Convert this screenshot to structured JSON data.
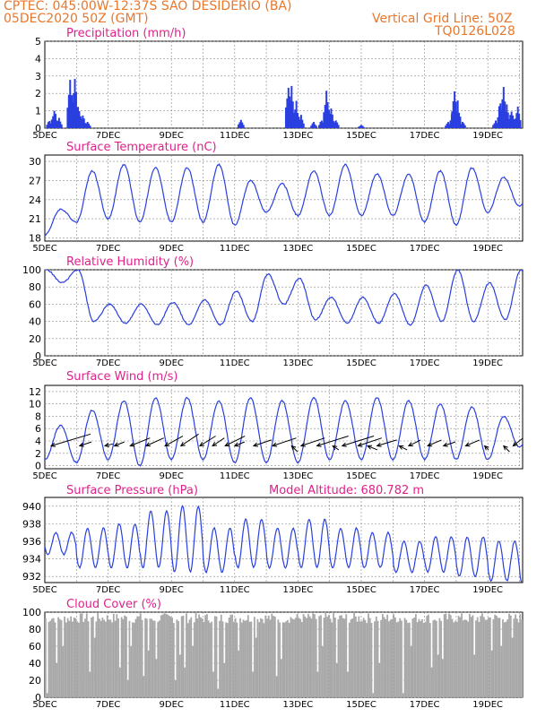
{
  "header": {
    "line1": "CPTEC:   045:00W-12:37S   SAO DESIDERIO (BA)",
    "line2": "05DEC2020 50Z (GMT)",
    "grid_note": "Vertical Grid Line: 50Z",
    "code": "TQ0126L028"
  },
  "colors": {
    "series": "#2a3fe0",
    "header": "#e8772e",
    "title": "#e0218a",
    "cloud": "#a8a8a8",
    "grid": "#888888"
  },
  "x_axis": {
    "ticks": [
      "5DEC",
      "7DEC",
      "9DEC",
      "11DEC",
      "13DEC",
      "15DEC",
      "17DEC",
      "19DEC"
    ],
    "tick_days": [
      0,
      2,
      4,
      6,
      8,
      10,
      12,
      14
    ],
    "range_days": [
      0,
      15.1
    ]
  },
  "chart_data": [
    {
      "type": "bar",
      "title": "Precipitation (mm/h)",
      "ylim": [
        0,
        5
      ],
      "yticks": [
        0,
        1,
        2,
        3,
        4,
        5
      ],
      "grid": true,
      "peaks": [
        {
          "day": 0.15,
          "value": 0.5
        },
        {
          "day": 0.3,
          "value": 1.2
        },
        {
          "day": 0.45,
          "value": 0.6
        },
        {
          "day": 0.8,
          "value": 3.1
        },
        {
          "day": 0.85,
          "value": 2.5
        },
        {
          "day": 0.95,
          "value": 3.1
        },
        {
          "day": 1.05,
          "value": 1.6
        },
        {
          "day": 1.2,
          "value": 0.8
        },
        {
          "day": 1.35,
          "value": 0.4
        },
        {
          "day": 6.2,
          "value": 0.5
        },
        {
          "day": 7.7,
          "value": 2.9
        },
        {
          "day": 7.8,
          "value": 2.5
        },
        {
          "day": 7.95,
          "value": 1.6
        },
        {
          "day": 8.1,
          "value": 0.8
        },
        {
          "day": 8.5,
          "value": 0.4
        },
        {
          "day": 8.75,
          "value": 0.5
        },
        {
          "day": 8.9,
          "value": 2.4
        },
        {
          "day": 9.05,
          "value": 1.2
        },
        {
          "day": 9.2,
          "value": 0.5
        },
        {
          "day": 10.0,
          "value": 0.2
        },
        {
          "day": 12.75,
          "value": 0.4
        },
        {
          "day": 12.9,
          "value": 1.2
        },
        {
          "day": 12.95,
          "value": 2.2
        },
        {
          "day": 13.05,
          "value": 1.6
        },
        {
          "day": 13.2,
          "value": 0.4
        },
        {
          "day": 14.25,
          "value": 0.5
        },
        {
          "day": 14.4,
          "value": 1.8
        },
        {
          "day": 14.5,
          "value": 2.5
        },
        {
          "day": 14.6,
          "value": 1.5
        },
        {
          "day": 14.75,
          "value": 1.2
        },
        {
          "day": 14.95,
          "value": 1.3
        }
      ]
    },
    {
      "type": "line",
      "title": "Surface Temperature (nC)",
      "ylim": [
        17.5,
        31
      ],
      "yticks": [
        18,
        21,
        24,
        27,
        30
      ],
      "grid": true,
      "daily_max": [
        22.5,
        28.5,
        29.5,
        29.0,
        29.0,
        29.5,
        27.0,
        26.5,
        28.5,
        29.5,
        28.0,
        28.0,
        28.5,
        29.0,
        27.5,
        26.5
      ],
      "daily_min": [
        18.5,
        20.5,
        21.0,
        20.5,
        20.5,
        20.5,
        20.0,
        22.0,
        21.5,
        21.5,
        21.5,
        21.5,
        20.5,
        20.0,
        22.0,
        23.0
      ]
    },
    {
      "type": "line",
      "title": "Relative Humidity (%)",
      "ylim": [
        0,
        100
      ],
      "yticks": [
        0,
        20,
        40,
        60,
        80,
        100
      ],
      "grid": true,
      "daily_max": [
        100,
        100,
        60,
        60,
        62,
        65,
        75,
        95,
        90,
        68,
        68,
        72,
        82,
        100,
        85,
        100
      ],
      "daily_min": [
        85,
        40,
        38,
        36,
        36,
        36,
        40,
        60,
        42,
        38,
        38,
        36,
        40,
        40,
        42,
        48
      ]
    },
    {
      "type": "line",
      "title": "Surface Wind (m/s)",
      "ylim": [
        -0.5,
        13
      ],
      "yticks": [
        0,
        2,
        4,
        6,
        8,
        10,
        12
      ],
      "grid": true,
      "daily_max": [
        6.5,
        9.0,
        10.5,
        11.0,
        11.0,
        10.5,
        11.0,
        10.5,
        11.0,
        10.5,
        11.0,
        10.5,
        10.0,
        9.5,
        8.0,
        8.0
      ],
      "daily_min": [
        1.0,
        0.5,
        1.0,
        0.0,
        1.0,
        1.0,
        0.5,
        0.5,
        0.5,
        1.0,
        1.0,
        1.0,
        1.0,
        1.0,
        1.0,
        3.0
      ],
      "arrows": [
        {
          "day": 0.2,
          "u": 2.0,
          "v": 0.6
        },
        {
          "day": 1.1,
          "u": 0.6,
          "v": 0.2
        },
        {
          "day": 1.9,
          "u": 0.4,
          "v": 0.1
        },
        {
          "day": 2.2,
          "u": 0.5,
          "v": 0.2
        },
        {
          "day": 2.7,
          "u": 1.0,
          "v": 0.4
        },
        {
          "day": 3.2,
          "u": 0.9,
          "v": 0.4
        },
        {
          "day": 3.8,
          "u": 0.9,
          "v": 0.5
        },
        {
          "day": 4.3,
          "u": 0.9,
          "v": 0.6
        },
        {
          "day": 4.9,
          "u": 0.8,
          "v": 0.5
        },
        {
          "day": 5.3,
          "u": 0.6,
          "v": 0.4
        },
        {
          "day": 5.7,
          "u": 1.0,
          "v": 0.5
        },
        {
          "day": 6.0,
          "u": 0.5,
          "v": 0.2
        },
        {
          "day": 6.6,
          "u": 0.9,
          "v": 0.3
        },
        {
          "day": 7.2,
          "u": 1.2,
          "v": 0.4
        },
        {
          "day": 7.8,
          "u": 0.3,
          "v": -0.3
        },
        {
          "day": 8.1,
          "u": 1.2,
          "v": 0.4
        },
        {
          "day": 8.6,
          "u": 1.6,
          "v": 0.5
        },
        {
          "day": 9.1,
          "u": 0.3,
          "v": -0.2
        },
        {
          "day": 9.4,
          "u": 1.6,
          "v": 0.5
        },
        {
          "day": 9.9,
          "u": 1.2,
          "v": 0.4
        },
        {
          "day": 10.2,
          "u": 0.5,
          "v": -0.2
        },
        {
          "day": 10.5,
          "u": 1.0,
          "v": 0.3
        },
        {
          "day": 11.2,
          "u": 0.4,
          "v": -0.2
        },
        {
          "day": 11.5,
          "u": 0.6,
          "v": 0.3
        },
        {
          "day": 12.1,
          "u": 0.7,
          "v": 0.3
        },
        {
          "day": 12.6,
          "u": 0.6,
          "v": 0.2
        },
        {
          "day": 13.3,
          "u": 0.7,
          "v": 0.3
        },
        {
          "day": 13.9,
          "u": 0.2,
          "v": -0.2
        },
        {
          "day": 14.5,
          "u": 0.3,
          "v": -0.3
        },
        {
          "day": 14.8,
          "u": 0.5,
          "v": 0.4
        }
      ]
    },
    {
      "type": "line",
      "title": "Surface Pressure (hPa)",
      "subtitle": "Model Altitude: 680.782 m",
      "ylim": [
        931.3,
        941
      ],
      "yticks": [
        932,
        934,
        936,
        938,
        940
      ],
      "grid": true,
      "daily_max": [
        937.0,
        937.5,
        938.0,
        939.5,
        940.0,
        937.5,
        938.5,
        937.5,
        938.5,
        937.5,
        937.0,
        936.0,
        936.5,
        936.5,
        936.0,
        935.5
      ],
      "daily_min": [
        934.5,
        933.0,
        933.0,
        933.0,
        932.5,
        932.5,
        933.0,
        933.0,
        933.0,
        933.0,
        933.0,
        932.5,
        932.5,
        932.0,
        931.5,
        931.0
      ]
    },
    {
      "type": "bar",
      "title": "Cloud Cover (%)",
      "ylim": [
        0,
        100
      ],
      "yticks": [
        0,
        20,
        40,
        60,
        80,
        100
      ],
      "grid": true,
      "typical_value": 93,
      "gaps": [
        {
          "day": 0.05,
          "value": 5
        },
        {
          "day": 0.35,
          "value": 40
        },
        {
          "day": 0.55,
          "value": 60
        },
        {
          "day": 1.4,
          "value": 30
        },
        {
          "day": 1.55,
          "value": 70
        },
        {
          "day": 2.35,
          "value": 35
        },
        {
          "day": 2.6,
          "value": 20
        },
        {
          "day": 2.7,
          "value": 60
        },
        {
          "day": 3.1,
          "value": 25
        },
        {
          "day": 3.25,
          "value": 55
        },
        {
          "day": 3.5,
          "value": 45
        },
        {
          "day": 4.1,
          "value": 20
        },
        {
          "day": 4.25,
          "value": 50
        },
        {
          "day": 4.4,
          "value": 35
        },
        {
          "day": 4.65,
          "value": 60
        },
        {
          "day": 5.3,
          "value": 30
        },
        {
          "day": 5.45,
          "value": 10
        },
        {
          "day": 5.65,
          "value": 40
        },
        {
          "day": 6.1,
          "value": 55
        },
        {
          "day": 6.55,
          "value": 30
        },
        {
          "day": 6.65,
          "value": 70
        },
        {
          "day": 7.3,
          "value": 25
        },
        {
          "day": 7.45,
          "value": 45
        },
        {
          "day": 8.6,
          "value": 30
        },
        {
          "day": 8.75,
          "value": 60
        },
        {
          "day": 9.2,
          "value": 40
        },
        {
          "day": 9.55,
          "value": 30
        },
        {
          "day": 10.35,
          "value": 5
        },
        {
          "day": 10.55,
          "value": 40
        },
        {
          "day": 11.3,
          "value": 5
        },
        {
          "day": 11.55,
          "value": 60
        },
        {
          "day": 12.2,
          "value": 35
        },
        {
          "day": 12.4,
          "value": 50
        },
        {
          "day": 12.55,
          "value": 45
        },
        {
          "day": 13.55,
          "value": 50
        },
        {
          "day": 14.1,
          "value": 55
        },
        {
          "day": 14.4,
          "value": 60
        },
        {
          "day": 14.75,
          "value": 70
        }
      ]
    }
  ]
}
